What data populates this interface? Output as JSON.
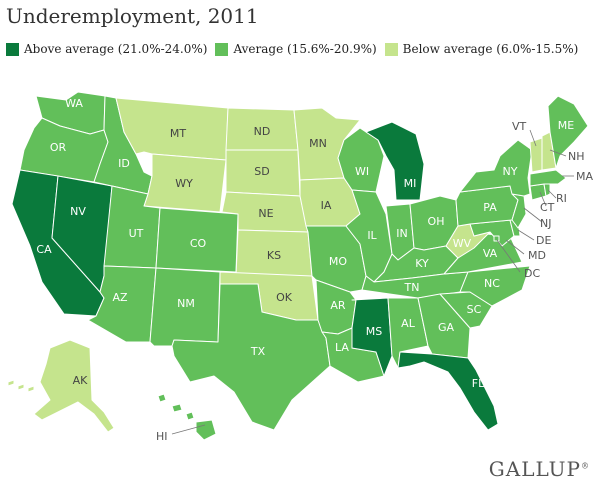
{
  "title": "Underemployment, 2011",
  "colors": {
    "above": "#0a7a3c",
    "average": "#62bf5a",
    "below": "#c5e48d"
  },
  "legend": [
    {
      "category": "above",
      "label": "Above average (21.0%-24.0%)"
    },
    {
      "category": "average",
      "label": "Average (15.6%-20.9%)"
    },
    {
      "category": "below",
      "label": "Below average (6.0%-15.5%)"
    }
  ],
  "states": {
    "WA": "average",
    "OR": "average",
    "CA": "above",
    "NV": "above",
    "ID": "average",
    "MT": "below",
    "WY": "below",
    "UT": "average",
    "AZ": "average",
    "CO": "average",
    "NM": "average",
    "ND": "below",
    "SD": "below",
    "NE": "below",
    "KS": "below",
    "OK": "below",
    "TX": "average",
    "MN": "below",
    "IA": "below",
    "MO": "average",
    "AR": "average",
    "LA": "average",
    "WI": "average",
    "IL": "average",
    "MI": "above",
    "IN": "average",
    "OH": "average",
    "KY": "average",
    "TN": "average",
    "MS": "above",
    "AL": "average",
    "GA": "average",
    "FL": "above",
    "SC": "average",
    "NC": "average",
    "VA": "average",
    "WV": "below",
    "MD": "average",
    "DE": "average",
    "DC": "average",
    "PA": "average",
    "NJ": "average",
    "NY": "average",
    "CT": "average",
    "RI": "average",
    "MA": "average",
    "VT": "below",
    "NH": "below",
    "ME": "average",
    "AK": "below",
    "HI": "average"
  },
  "brand": "GALLUP",
  "brand_mark": "®"
}
